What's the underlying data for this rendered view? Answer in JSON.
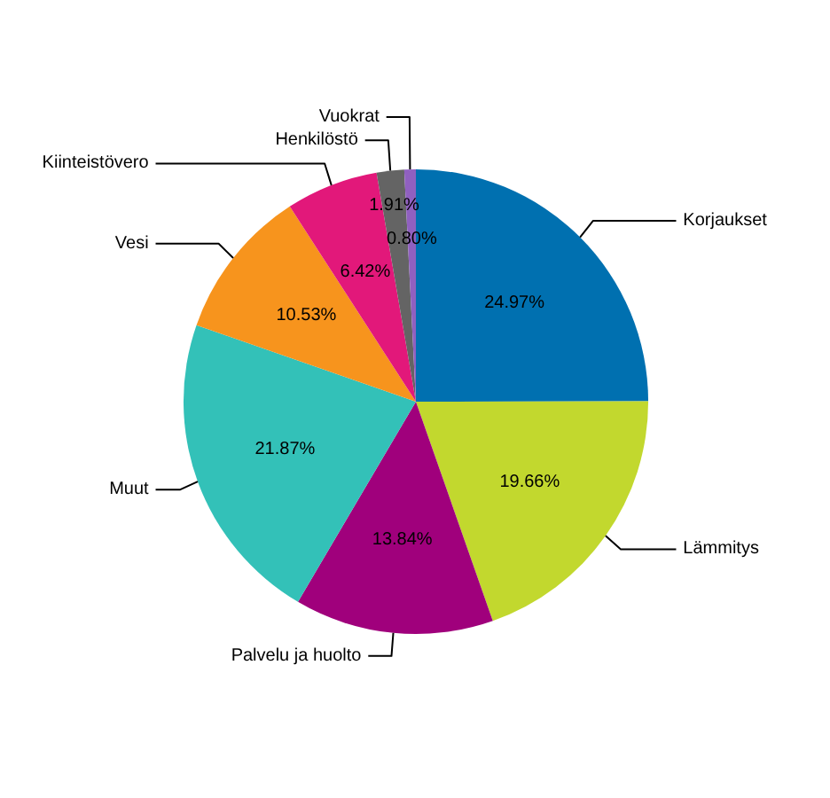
{
  "chart_data": {
    "type": "pie",
    "categories": [
      "Korjaukset",
      "Lämmitys",
      "Palvelu ja huolto",
      "Muut",
      "Vesi",
      "Kiinteistövero",
      "Henkilöstö",
      "Vuokrat"
    ],
    "values": [
      24.97,
      19.66,
      13.84,
      21.87,
      10.53,
      6.42,
      1.91,
      0.8
    ],
    "colors": [
      "#0070b0",
      "#c2d82e",
      "#a0007c",
      "#33c1b8",
      "#f7941d",
      "#e2187a",
      "#646464",
      "#9060c0"
    ],
    "value_labels": [
      "24.97%",
      "19.66%",
      "13.84%",
      "21.87%",
      "10.53%",
      "6.42%",
      "1.91%",
      "0.80%"
    ]
  }
}
